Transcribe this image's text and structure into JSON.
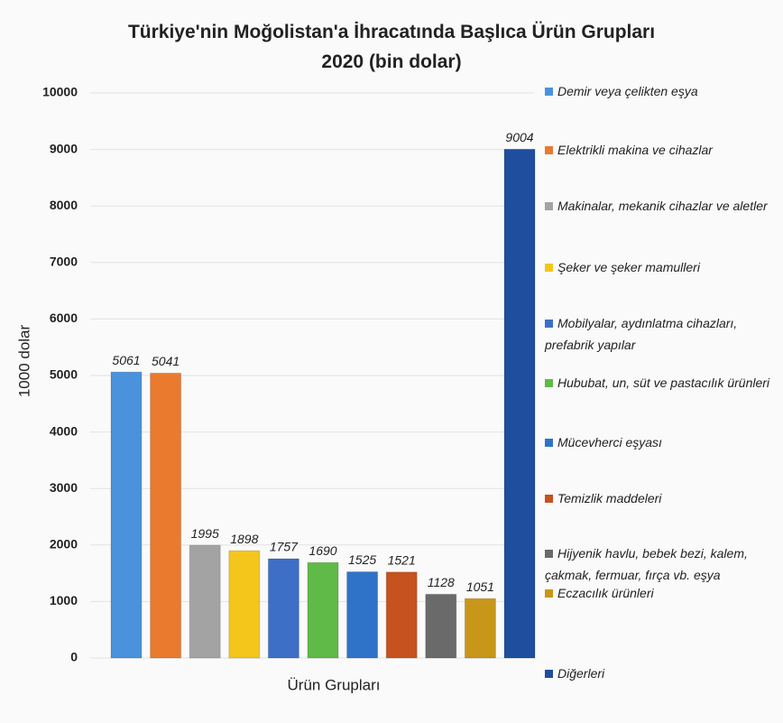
{
  "chart_data": {
    "type": "bar",
    "title": "Türkiye'nin Moğolistan'a İhracatında Başlıca Ürün Grupları",
    "subtitle": "2020 (bin dolar)",
    "x_label": "Ürün Grupları",
    "y_label": "1000 dolar",
    "categories": [
      "Demir veya çelikten eşya",
      "Elektrikli makina ve cihazlar",
      "Makinalar, mekanik cihazlar ve aletler",
      "Şeker ve şeker mamulleri",
      "Mobilyalar, aydınlatma cihazları, prefabrik yapılar",
      "Hububat, un, süt ve pastacılık ürünleri",
      "Mücevherci eşyası",
      "Temizlik maddeleri",
      "Hijyenik havlu, bebek bezi, kalem, çakmak, fermuar, fırça vb. eşya",
      "Eczacılık ürünleri",
      "Diğerleri"
    ],
    "values": [
      5061,
      5041,
      1995,
      1898,
      1757,
      1690,
      1525,
      1521,
      1128,
      1051,
      9004
    ],
    "colors": [
      "#4a93dc",
      "#ea7a2e",
      "#a3a3a3",
      "#f4c61c",
      "#3d6fc6",
      "#5fba47",
      "#2e73c8",
      "#c6521f",
      "#6a6a6a",
      "#c89619",
      "#1f4e9e"
    ],
    "ylim": [
      0,
      10000
    ],
    "yticks": [
      0,
      1000,
      2000,
      3000,
      4000,
      5000,
      6000,
      7000,
      8000,
      9000,
      10000
    ],
    "grid": true,
    "legend": "right"
  }
}
